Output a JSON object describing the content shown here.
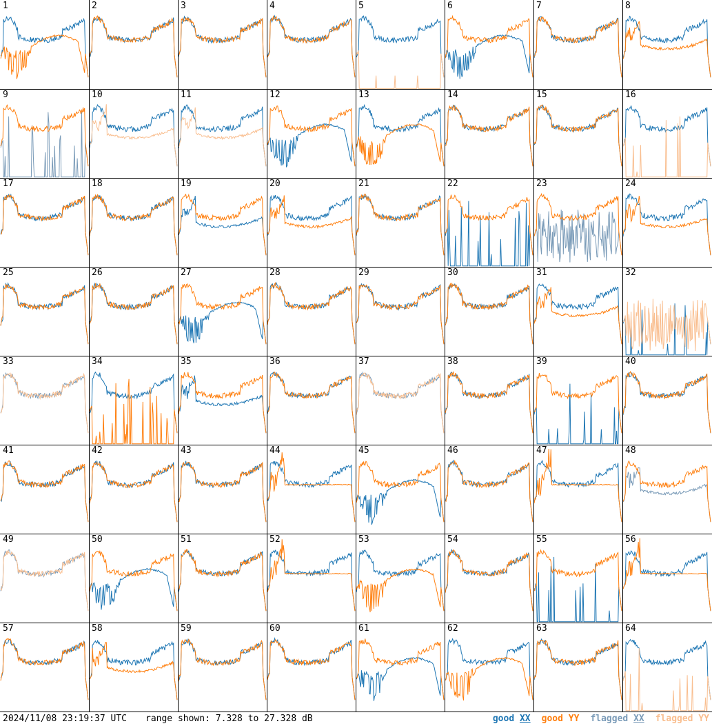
{
  "chart_data": {
    "type": "line",
    "layout": "8x8 small multiples (one panel per antenna, bandpass spectra)",
    "timestamp": "2024/11/08 23:19:37 UTC",
    "range_text": "range shown: 7.328 to 27.328 dB",
    "ylim_db": [
      7.328,
      27.328
    ],
    "legend": [
      {
        "prefix": "good ",
        "pol": "XX",
        "color": "#1f77b4"
      },
      {
        "prefix": "good ",
        "pol": "YY",
        "color": "#ff7f0e"
      },
      {
        "prefix": "flagged ",
        "pol": "XX",
        "color": "#7a9bb8"
      },
      {
        "prefix": "flagged ",
        "pol": "YY",
        "color": "#f9be8f"
      }
    ],
    "colors": {
      "good_xx": "#1f77b4",
      "good_yy": "#ff7f0e",
      "flagged_xx": "#7a9bb8",
      "flagged_yy": "#f9be8f"
    },
    "profiles": [
      "typ",
      "dip",
      "low",
      "flat",
      "noise",
      "spikes",
      "zero"
    ],
    "panels": [
      {
        "label": "1",
        "xx": "typ",
        "yy": "dip",
        "xxFlag": false,
        "yyFlag": false
      },
      {
        "label": "2",
        "xx": "typ",
        "yy": "typ",
        "xxFlag": false,
        "yyFlag": false
      },
      {
        "label": "3",
        "xx": "typ",
        "yy": "typ",
        "xxFlag": false,
        "yyFlag": false
      },
      {
        "label": "4",
        "xx": "typ",
        "yy": "typ",
        "xxFlag": false,
        "yyFlag": false
      },
      {
        "label": "5",
        "xx": "typ",
        "yy": "zero",
        "xxFlag": false,
        "yyFlag": true
      },
      {
        "label": "6",
        "xx": "dip",
        "yy": "typ",
        "xxFlag": false,
        "yyFlag": false
      },
      {
        "label": "7",
        "xx": "typ",
        "yy": "typ",
        "xxFlag": false,
        "yyFlag": false
      },
      {
        "label": "8",
        "xx": "typ",
        "yy": "low",
        "xxFlag": false,
        "yyFlag": false
      },
      {
        "label": "9",
        "xx": "spikes",
        "yy": "typ",
        "xxFlag": true,
        "yyFlag": false
      },
      {
        "label": "10",
        "xx": "typ",
        "yy": "low",
        "xxFlag": false,
        "yyFlag": true
      },
      {
        "label": "11",
        "xx": "typ",
        "yy": "low",
        "xxFlag": false,
        "yyFlag": true
      },
      {
        "label": "12",
        "xx": "dip",
        "yy": "typ",
        "xxFlag": false,
        "yyFlag": false
      },
      {
        "label": "13",
        "xx": "typ",
        "yy": "dip",
        "xxFlag": false,
        "yyFlag": false
      },
      {
        "label": "14",
        "xx": "typ",
        "yy": "typ",
        "xxFlag": false,
        "yyFlag": false
      },
      {
        "label": "15",
        "xx": "typ",
        "yy": "typ",
        "xxFlag": false,
        "yyFlag": false
      },
      {
        "label": "16",
        "xx": "typ",
        "yy": "spikes",
        "xxFlag": false,
        "yyFlag": true
      },
      {
        "label": "17",
        "xx": "typ",
        "yy": "typ",
        "xxFlag": false,
        "yyFlag": false
      },
      {
        "label": "18",
        "xx": "typ",
        "yy": "typ",
        "xxFlag": false,
        "yyFlag": false
      },
      {
        "label": "19",
        "xx": "low",
        "yy": "typ",
        "xxFlag": false,
        "yyFlag": false
      },
      {
        "label": "20",
        "xx": "typ",
        "yy": "low",
        "xxFlag": false,
        "yyFlag": false
      },
      {
        "label": "21",
        "xx": "typ",
        "yy": "typ",
        "xxFlag": false,
        "yyFlag": false
      },
      {
        "label": "22",
        "xx": "spikes",
        "yy": "typ",
        "xxFlag": false,
        "yyFlag": false
      },
      {
        "label": "23",
        "xx": "noise",
        "yy": "typ",
        "xxFlag": true,
        "yyFlag": false
      },
      {
        "label": "24",
        "xx": "typ",
        "yy": "low",
        "xxFlag": false,
        "yyFlag": false
      },
      {
        "label": "25",
        "xx": "typ",
        "yy": "typ",
        "xxFlag": false,
        "yyFlag": false
      },
      {
        "label": "26",
        "xx": "typ",
        "yy": "typ",
        "xxFlag": false,
        "yyFlag": false
      },
      {
        "label": "27",
        "xx": "dip",
        "yy": "typ",
        "xxFlag": false,
        "yyFlag": false
      },
      {
        "label": "28",
        "xx": "typ",
        "yy": "typ",
        "xxFlag": false,
        "yyFlag": false
      },
      {
        "label": "29",
        "xx": "typ",
        "yy": "typ",
        "xxFlag": false,
        "yyFlag": false
      },
      {
        "label": "30",
        "xx": "typ",
        "yy": "typ",
        "xxFlag": false,
        "yyFlag": false
      },
      {
        "label": "31",
        "xx": "typ",
        "yy": "low",
        "xxFlag": false,
        "yyFlag": false
      },
      {
        "label": "32",
        "xx": "spikes",
        "yy": "noise",
        "xxFlag": false,
        "yyFlag": true
      },
      {
        "label": "33",
        "xx": "typ",
        "yy": "typ",
        "xxFlag": true,
        "yyFlag": true
      },
      {
        "label": "34",
        "xx": "typ",
        "yy": "spikes",
        "xxFlag": false,
        "yyFlag": false
      },
      {
        "label": "35",
        "xx": "low",
        "yy": "typ",
        "xxFlag": false,
        "yyFlag": false
      },
      {
        "label": "36",
        "xx": "typ",
        "yy": "typ",
        "xxFlag": false,
        "yyFlag": false
      },
      {
        "label": "37",
        "xx": "typ",
        "yy": "typ",
        "xxFlag": true,
        "yyFlag": true
      },
      {
        "label": "38",
        "xx": "typ",
        "yy": "typ",
        "xxFlag": false,
        "yyFlag": false
      },
      {
        "label": "39",
        "xx": "spikes",
        "yy": "typ",
        "xxFlag": false,
        "yyFlag": false
      },
      {
        "label": "40",
        "xx": "typ",
        "yy": "typ",
        "xxFlag": false,
        "yyFlag": false
      },
      {
        "label": "41",
        "xx": "typ",
        "yy": "typ",
        "xxFlag": false,
        "yyFlag": false
      },
      {
        "label": "42",
        "xx": "typ",
        "yy": "typ",
        "xxFlag": false,
        "yyFlag": false
      },
      {
        "label": "43",
        "xx": "typ",
        "yy": "typ",
        "xxFlag": false,
        "yyFlag": false
      },
      {
        "label": "44",
        "xx": "typ",
        "yy": "flat",
        "xxFlag": false,
        "yyFlag": false
      },
      {
        "label": "45",
        "xx": "dip",
        "yy": "typ",
        "xxFlag": false,
        "yyFlag": false
      },
      {
        "label": "46",
        "xx": "typ",
        "yy": "typ",
        "xxFlag": false,
        "yyFlag": false
      },
      {
        "label": "47",
        "xx": "typ",
        "yy": "flat",
        "xxFlag": false,
        "yyFlag": false
      },
      {
        "label": "48",
        "xx": "low",
        "yy": "typ",
        "xxFlag": true,
        "yyFlag": false
      },
      {
        "label": "49",
        "xx": "typ",
        "yy": "typ",
        "xxFlag": true,
        "yyFlag": true
      },
      {
        "label": "50",
        "xx": "dip",
        "yy": "typ",
        "xxFlag": false,
        "yyFlag": false
      },
      {
        "label": "51",
        "xx": "typ",
        "yy": "typ",
        "xxFlag": false,
        "yyFlag": false
      },
      {
        "label": "52",
        "xx": "typ",
        "yy": "flat",
        "xxFlag": false,
        "yyFlag": false
      },
      {
        "label": "53",
        "xx": "typ",
        "yy": "dip",
        "xxFlag": false,
        "yyFlag": false
      },
      {
        "label": "54",
        "xx": "typ",
        "yy": "typ",
        "xxFlag": false,
        "yyFlag": false
      },
      {
        "label": "55",
        "xx": "spikes",
        "yy": "typ",
        "xxFlag": false,
        "yyFlag": false
      },
      {
        "label": "56",
        "xx": "typ",
        "yy": "flat",
        "xxFlag": false,
        "yyFlag": false
      },
      {
        "label": "57",
        "xx": "typ",
        "yy": "typ",
        "xxFlag": false,
        "yyFlag": false
      },
      {
        "label": "58",
        "xx": "typ",
        "yy": "low",
        "xxFlag": false,
        "yyFlag": false
      },
      {
        "label": "59",
        "xx": "typ",
        "yy": "typ",
        "xxFlag": false,
        "yyFlag": false
      },
      {
        "label": "60",
        "xx": "typ",
        "yy": "typ",
        "xxFlag": false,
        "yyFlag": false
      },
      {
        "label": "61",
        "xx": "dip",
        "yy": "typ",
        "xxFlag": false,
        "yyFlag": false
      },
      {
        "label": "62",
        "xx": "typ",
        "yy": "dip",
        "xxFlag": false,
        "yyFlag": false
      },
      {
        "label": "63",
        "xx": "typ",
        "yy": "typ",
        "xxFlag": false,
        "yyFlag": false
      },
      {
        "label": "64",
        "xx": "typ",
        "yy": "spikes",
        "xxFlag": false,
        "yyFlag": true
      }
    ]
  }
}
